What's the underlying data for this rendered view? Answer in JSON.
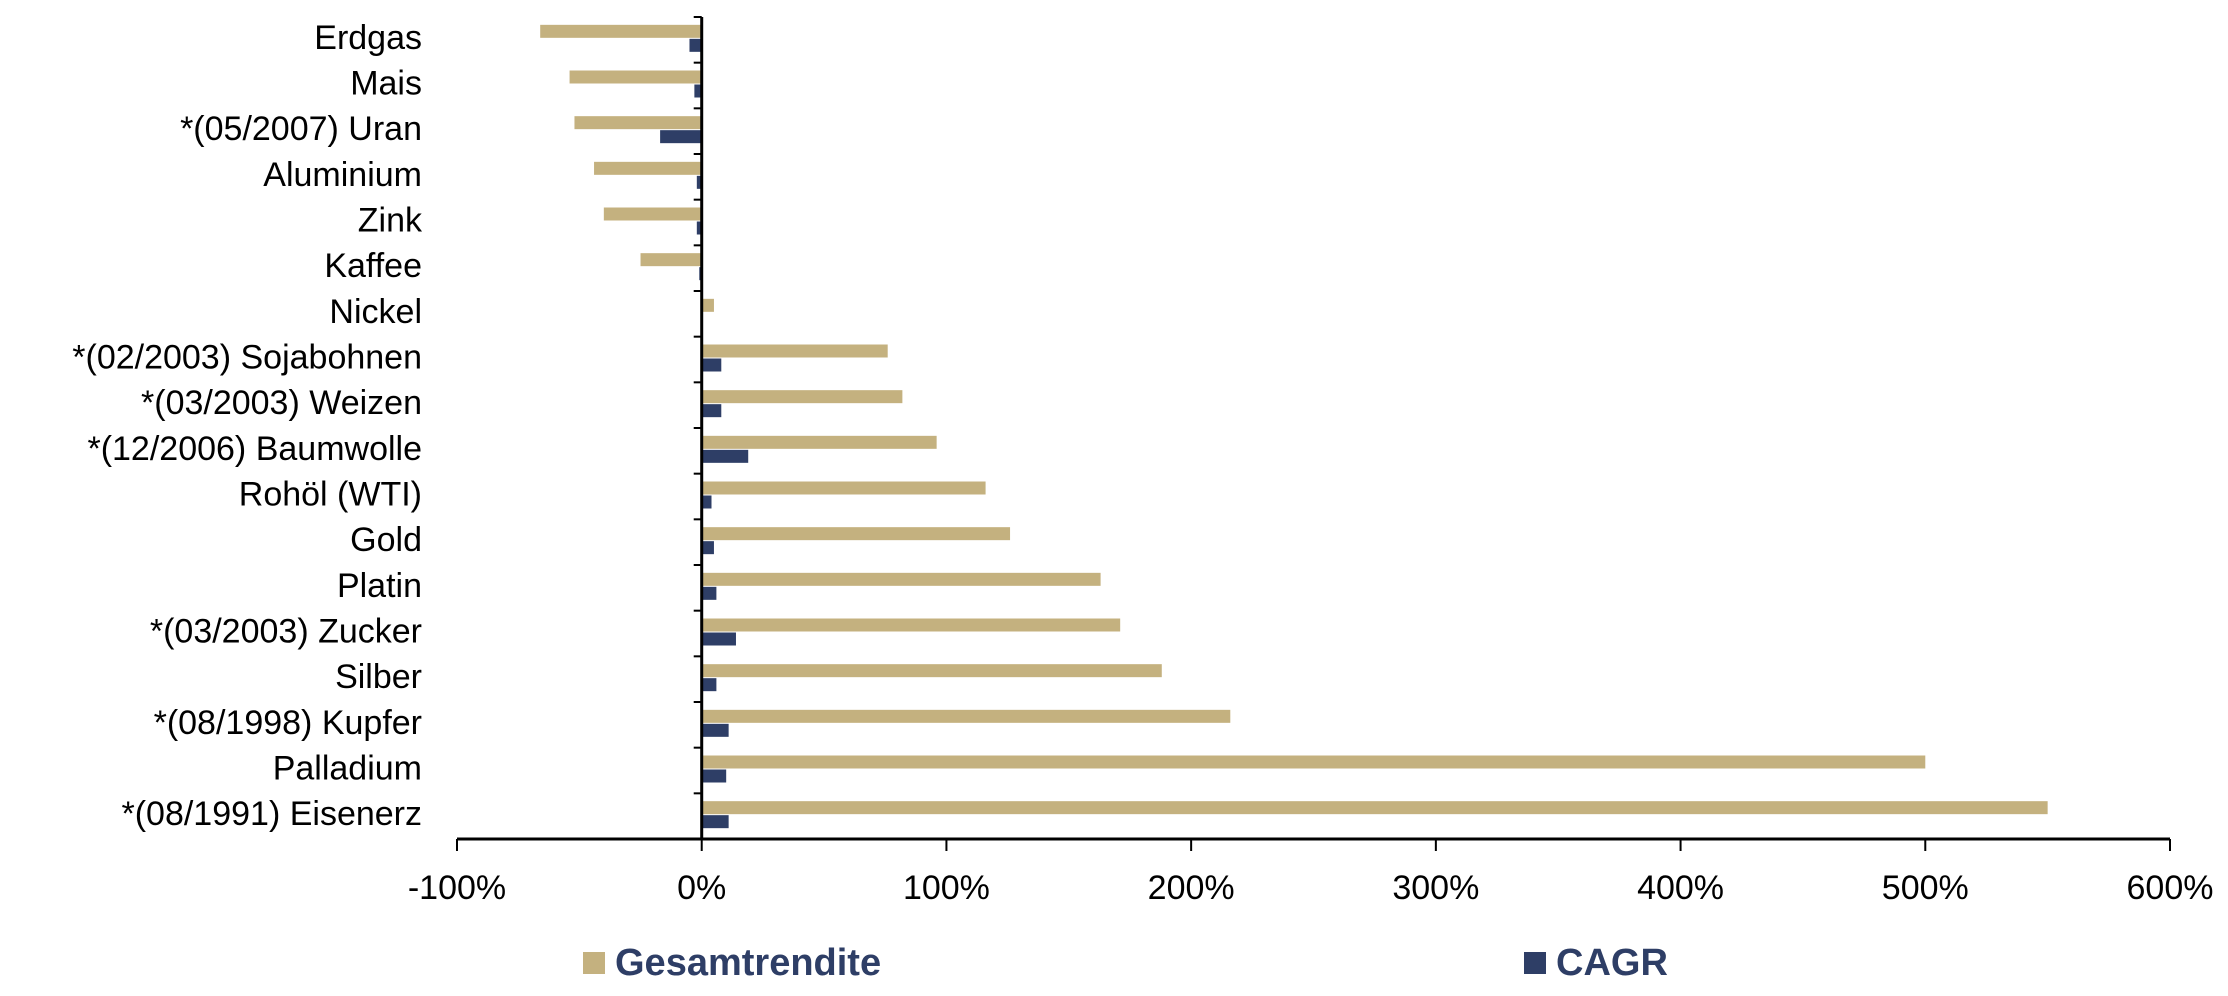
{
  "chart_data": {
    "type": "bar",
    "orientation": "horizontal",
    "categories": [
      "Erdgas",
      "Mais",
      "*(05/2007) Uran",
      "Aluminium",
      "Zink",
      "Kaffee",
      "Nickel",
      "*(02/2003) Sojabohnen",
      "*(03/2003) Weizen",
      "*(12/2006) Baumwolle",
      "Rohöl (WTI)",
      "Gold",
      "Platin",
      "*(03/2003) Zucker",
      "Silber",
      "*(08/1998) Kupfer",
      "Palladium",
      "*(08/1991) Eisenerz"
    ],
    "series": [
      {
        "name": "Gesamtrendite",
        "color": "#c4b17f",
        "values": [
          -66,
          -54,
          -52,
          -44,
          -40,
          -25,
          5,
          76,
          82,
          96,
          116,
          126,
          163,
          171,
          188,
          216,
          500,
          550
        ]
      },
      {
        "name": "CAGR",
        "color": "#2e3e66",
        "values": [
          -5,
          -3,
          -17,
          -2,
          -2,
          -1,
          0,
          8,
          8,
          19,
          4,
          5,
          6,
          14,
          6,
          11,
          10,
          11
        ]
      }
    ],
    "xlim": [
      -100,
      600
    ],
    "xticks": [
      {
        "value": -100,
        "label": "-100%"
      },
      {
        "value": 0,
        "label": "0%"
      },
      {
        "value": 100,
        "label": "100%"
      },
      {
        "value": 200,
        "label": "200%"
      },
      {
        "value": 300,
        "label": "300%"
      },
      {
        "value": 400,
        "label": "400%"
      },
      {
        "value": 500,
        "label": "500%"
      },
      {
        "value": 600,
        "label": "600%"
      }
    ],
    "grid": false,
    "legend": "bottom"
  }
}
